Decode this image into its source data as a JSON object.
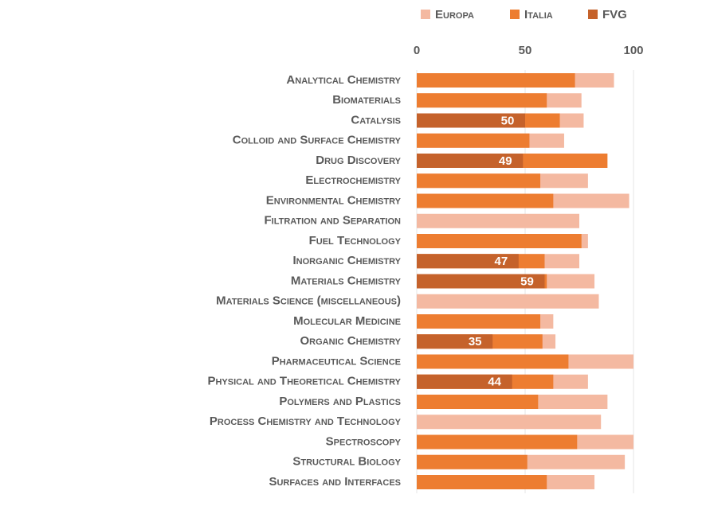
{
  "chart_data": {
    "type": "overlapped-bar",
    "categories": [
      "Analytical Chemistry",
      "Biomaterials",
      "Catalysis",
      "Colloid and Surface Chemistry",
      "Drug Discovery",
      "Electrochemistry",
      "Environmental Chemistry",
      "Filtration and Separation",
      "Fuel Technology",
      "Inorganic Chemistry",
      "Materials Chemistry",
      "Materials Science (miscellaneous)",
      "Molecular Medicine",
      "Organic Chemistry",
      "Pharmaceutical Science",
      "Physical and Theoretical Chemistry",
      "Polymers and Plastics",
      "Process Chemistry and Technology",
      "Spectroscopy",
      "Structural Biology",
      "Surfaces and Interfaces"
    ],
    "series": [
      {
        "name": "Europa",
        "color": "#f4b9a1",
        "values": [
          91,
          76,
          77,
          68,
          null,
          79,
          98,
          75,
          79,
          75,
          82,
          84,
          63,
          64,
          100,
          79,
          88,
          85,
          100,
          96,
          82
        ]
      },
      {
        "name": "Italia",
        "color": "#ed7d31",
        "values": [
          73,
          60,
          66,
          52,
          88,
          57,
          63,
          null,
          76,
          59,
          60,
          null,
          57,
          58,
          70,
          63,
          56,
          null,
          74,
          51,
          60
        ]
      },
      {
        "name": "FVG",
        "color": "#c5622b",
        "values": [
          null,
          null,
          50,
          null,
          49,
          null,
          null,
          null,
          null,
          47,
          59,
          null,
          null,
          35,
          null,
          44,
          null,
          null,
          null,
          null,
          null
        ],
        "data_labels": true
      }
    ],
    "xlim": [
      0,
      100
    ],
    "xticks": [
      0,
      50,
      100
    ],
    "grid": true,
    "legend": "top"
  }
}
